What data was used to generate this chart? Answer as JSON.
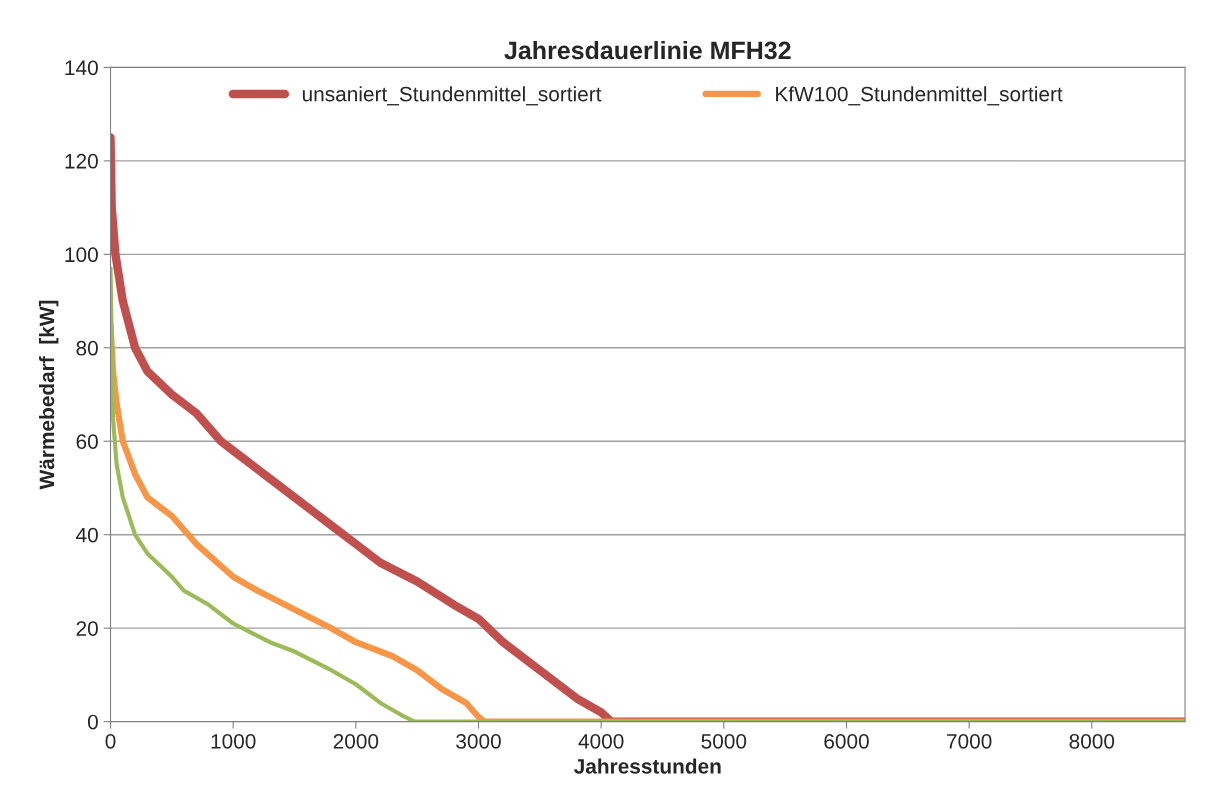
{
  "chart_data": {
    "type": "line",
    "title": "Jahresdauerlinie MFH32",
    "xlabel": "Jahresstunden",
    "ylabel": "Wärmebedarf  [kW]",
    "xlim": [
      0,
      8760
    ],
    "xticks": [
      0,
      1000,
      2000,
      3000,
      4000,
      5000,
      6000,
      7000,
      8000
    ],
    "ylim": [
      0,
      140
    ],
    "yticks": [
      0,
      20,
      40,
      60,
      80,
      100,
      120,
      140
    ],
    "grid": "y",
    "legend": "top",
    "marker": "none",
    "line_style": "solid",
    "series": [
      {
        "name": "unsaniert_Stundenmittel_sortiert",
        "color": "#c0504d",
        "x": [
          0,
          10,
          40,
          100,
          200,
          300,
          500,
          700,
          800,
          900,
          1000,
          1500,
          1800,
          2000,
          2200,
          2500,
          2800,
          3000,
          3200,
          3500,
          3800,
          4000,
          4080,
          8760
        ],
        "values": [
          125,
          110,
          100,
          90,
          80,
          75,
          70,
          66,
          63,
          60,
          58,
          48,
          42,
          38,
          34,
          30,
          25,
          22,
          17,
          11,
          5,
          2,
          0,
          0
        ]
      },
      {
        "name": "KfW100_Stundenmittel_sortiert",
        "color": "#f79646",
        "x": [
          0,
          20,
          50,
          100,
          200,
          300,
          500,
          700,
          1000,
          1200,
          1500,
          1800,
          2000,
          2300,
          2500,
          2700,
          2900,
          3000,
          3050,
          8760
        ],
        "values": [
          85,
          75,
          68,
          60,
          53,
          48,
          44,
          38,
          31,
          28,
          24,
          20,
          17,
          14,
          11,
          7,
          4,
          1,
          0,
          0
        ]
      },
      {
        "color": "#9bbb59",
        "x": [
          0,
          10,
          20,
          50,
          100,
          200,
          300,
          500,
          600,
          800,
          1000,
          1300,
          1500,
          1800,
          2000,
          2200,
          2400,
          2480,
          8760
        ],
        "values": [
          97,
          80,
          65,
          55,
          48,
          40,
          36,
          31,
          28,
          25,
          21,
          17,
          15,
          11,
          8,
          4,
          1,
          0,
          0
        ]
      }
    ]
  }
}
